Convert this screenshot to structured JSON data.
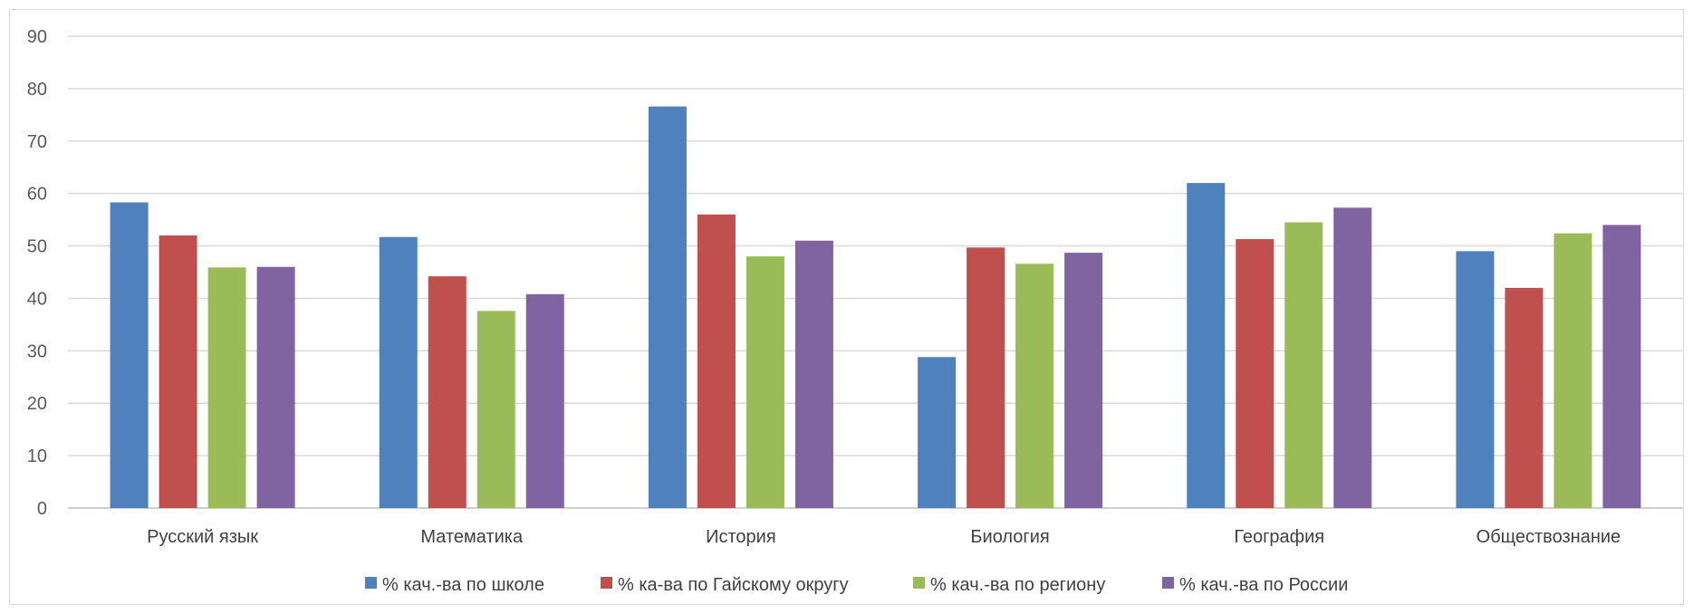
{
  "chart_data": {
    "type": "bar",
    "categories": [
      "Русский язык",
      "Математика",
      "История",
      "Биология",
      "География",
      "Обществознание"
    ],
    "series": [
      {
        "name": "% кач.-ва по школе",
        "color": "#4f81bd",
        "values": [
          58.3,
          51.7,
          76.6,
          28.8,
          62,
          49
        ]
      },
      {
        "name": "% ка-ва по Гайскому округу",
        "color": "#c0504d",
        "values": [
          52,
          44.2,
          56,
          49.7,
          51.3,
          42
        ]
      },
      {
        "name": "% кач.-ва по региону",
        "color": "#9bbb59",
        "values": [
          45.9,
          37.6,
          48,
          46.6,
          54.5,
          52.4
        ]
      },
      {
        "name": "% кач.-ва по России",
        "color": "#8064a2",
        "values": [
          46,
          40.8,
          51,
          48.7,
          57.3,
          54
        ]
      }
    ],
    "title": "",
    "xlabel": "",
    "ylabel": "",
    "ylim": [
      0,
      90
    ],
    "yticks": [
      0,
      10,
      20,
      30,
      40,
      50,
      60,
      70,
      80,
      90
    ],
    "grid": true,
    "legend_position": "bottom"
  }
}
